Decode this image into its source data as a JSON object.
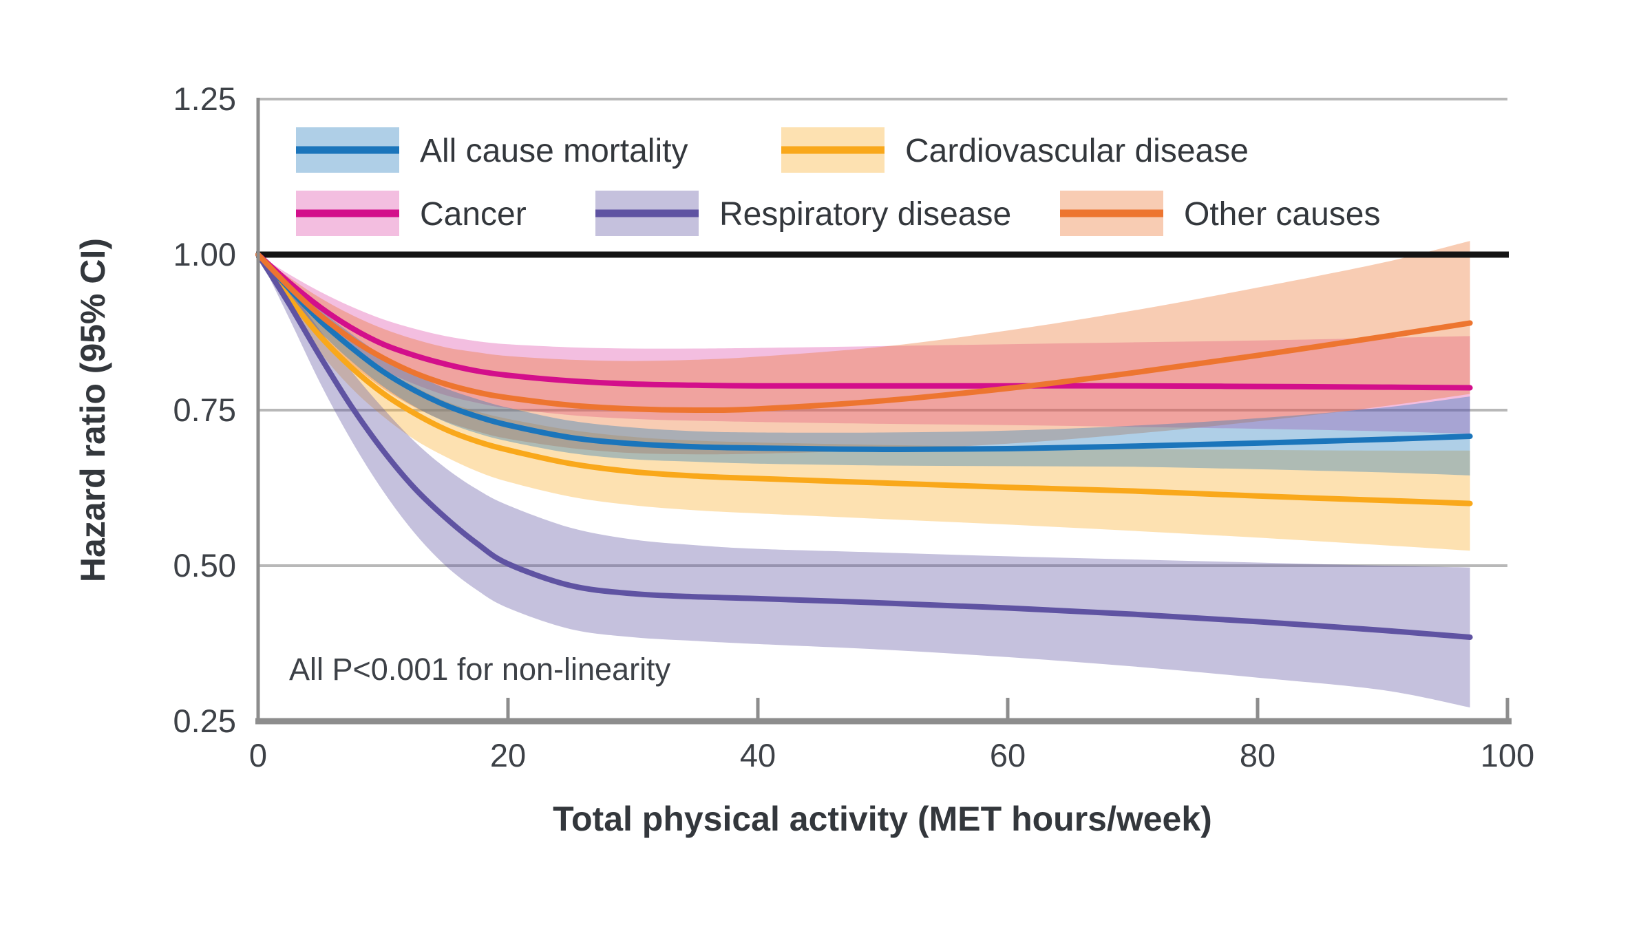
{
  "figure": {
    "background": "#ffffff",
    "axis_color": "#8d8d8d",
    "grid_color": "#b8b8b8",
    "reference_line_color": "#141414",
    "text_color": "#3a3e44"
  },
  "chart_data": {
    "type": "line",
    "title": "",
    "xlabel": "Total physical activity (MET hours/week)",
    "ylabel": "Hazard ratio (95% CI)",
    "annotation": "All P<0.001 for non-linearity",
    "xlim": [
      0,
      100
    ],
    "ylim": [
      0.25,
      1.25
    ],
    "x_ticks": [
      0,
      20,
      40,
      60,
      80,
      100
    ],
    "y_ticks": [
      "1.25",
      "1.00",
      "0.75",
      "0.50",
      "0.25"
    ],
    "y_tick_values": [
      1.25,
      1.0,
      0.75,
      0.5,
      0.25
    ],
    "y_gridlines": [
      1.25,
      0.75,
      0.5
    ],
    "reference_line_y": 1.0,
    "legend_position": "top-left-inside",
    "grid": "horizontal-only",
    "x": [
      0,
      2.5,
      5,
      7.5,
      10,
      12.5,
      15,
      17.5,
      20,
      25,
      30,
      35,
      40,
      50,
      60,
      70,
      80,
      90,
      97
    ],
    "series": [
      {
        "id": "all-cause-mortality",
        "name": "All cause mortality",
        "color": "#1b75bb",
        "band_opacity": 0.35,
        "y": [
          1.0,
          0.945,
          0.893,
          0.85,
          0.812,
          0.782,
          0.758,
          0.74,
          0.726,
          0.706,
          0.696,
          0.691,
          0.689,
          0.687,
          0.688,
          0.692,
          0.697,
          0.703,
          0.708
        ],
        "lo": [
          1.0,
          0.932,
          0.875,
          0.828,
          0.788,
          0.756,
          0.731,
          0.713,
          0.7,
          0.681,
          0.671,
          0.667,
          0.664,
          0.661,
          0.66,
          0.659,
          0.655,
          0.65,
          0.645
        ],
        "hi": [
          1.0,
          0.956,
          0.911,
          0.872,
          0.837,
          0.808,
          0.785,
          0.768,
          0.754,
          0.733,
          0.722,
          0.716,
          0.714,
          0.714,
          0.717,
          0.725,
          0.737,
          0.754,
          0.772
        ]
      },
      {
        "id": "cardiovascular-disease",
        "name": "Cardiovascular disease",
        "color": "#f9a81b",
        "band_opacity": 0.34,
        "y": [
          1.0,
          0.93,
          0.868,
          0.818,
          0.777,
          0.745,
          0.719,
          0.7,
          0.686,
          0.664,
          0.651,
          0.644,
          0.64,
          0.633,
          0.626,
          0.62,
          0.612,
          0.605,
          0.6
        ],
        "lo": [
          1.0,
          0.914,
          0.842,
          0.785,
          0.74,
          0.703,
          0.675,
          0.652,
          0.635,
          0.611,
          0.597,
          0.589,
          0.584,
          0.575,
          0.566,
          0.556,
          0.545,
          0.533,
          0.524
        ],
        "hi": [
          1.0,
          0.946,
          0.893,
          0.851,
          0.816,
          0.788,
          0.764,
          0.748,
          0.736,
          0.718,
          0.707,
          0.701,
          0.698,
          0.694,
          0.691,
          0.688,
          0.686,
          0.685,
          0.685
        ]
      },
      {
        "id": "cancer",
        "name": "Cancer",
        "color": "#d30f8b",
        "band_opacity": 0.27,
        "y": [
          1.0,
          0.955,
          0.915,
          0.882,
          0.856,
          0.838,
          0.824,
          0.813,
          0.806,
          0.797,
          0.792,
          0.79,
          0.789,
          0.789,
          0.789,
          0.789,
          0.788,
          0.787,
          0.786
        ],
        "lo": [
          1.0,
          0.94,
          0.888,
          0.847,
          0.815,
          0.792,
          0.774,
          0.762,
          0.753,
          0.742,
          0.736,
          0.733,
          0.731,
          0.728,
          0.726,
          0.723,
          0.72,
          0.716,
          0.712
        ],
        "hi": [
          1.0,
          0.968,
          0.94,
          0.916,
          0.896,
          0.881,
          0.869,
          0.861,
          0.856,
          0.851,
          0.849,
          0.849,
          0.85,
          0.853,
          0.856,
          0.859,
          0.862,
          0.866,
          0.869
        ]
      },
      {
        "id": "respiratory-disease",
        "name": "Respiratory disease",
        "color": "#5f53a2",
        "band_opacity": 0.36,
        "y": [
          1.0,
          0.92,
          0.835,
          0.755,
          0.685,
          0.625,
          0.577,
          0.536,
          0.503,
          0.468,
          0.455,
          0.45,
          0.447,
          0.44,
          0.432,
          0.422,
          0.41,
          0.396,
          0.385
        ],
        "lo": [
          1.0,
          0.897,
          0.792,
          0.7,
          0.62,
          0.553,
          0.5,
          0.461,
          0.432,
          0.398,
          0.385,
          0.379,
          0.374,
          0.365,
          0.353,
          0.338,
          0.32,
          0.3,
          0.272
        ],
        "hi": [
          1.0,
          0.944,
          0.877,
          0.812,
          0.753,
          0.7,
          0.657,
          0.623,
          0.597,
          0.561,
          0.542,
          0.533,
          0.527,
          0.521,
          0.515,
          0.51,
          0.505,
          0.5,
          0.497
        ]
      },
      {
        "id": "other-causes",
        "name": "Other causes",
        "color": "#ed7530",
        "band_opacity": 0.37,
        "y": [
          1.0,
          0.948,
          0.902,
          0.864,
          0.834,
          0.81,
          0.792,
          0.779,
          0.77,
          0.758,
          0.752,
          0.75,
          0.752,
          0.765,
          0.785,
          0.81,
          0.838,
          0.868,
          0.89
        ],
        "lo": [
          1.0,
          0.932,
          0.872,
          0.824,
          0.785,
          0.755,
          0.732,
          0.716,
          0.704,
          0.689,
          0.681,
          0.679,
          0.68,
          0.686,
          0.696,
          0.712,
          0.732,
          0.756,
          0.776
        ],
        "hi": [
          1.0,
          0.963,
          0.93,
          0.903,
          0.881,
          0.864,
          0.851,
          0.843,
          0.837,
          0.831,
          0.829,
          0.831,
          0.836,
          0.852,
          0.878,
          0.91,
          0.947,
          0.987,
          1.022
        ]
      }
    ]
  }
}
